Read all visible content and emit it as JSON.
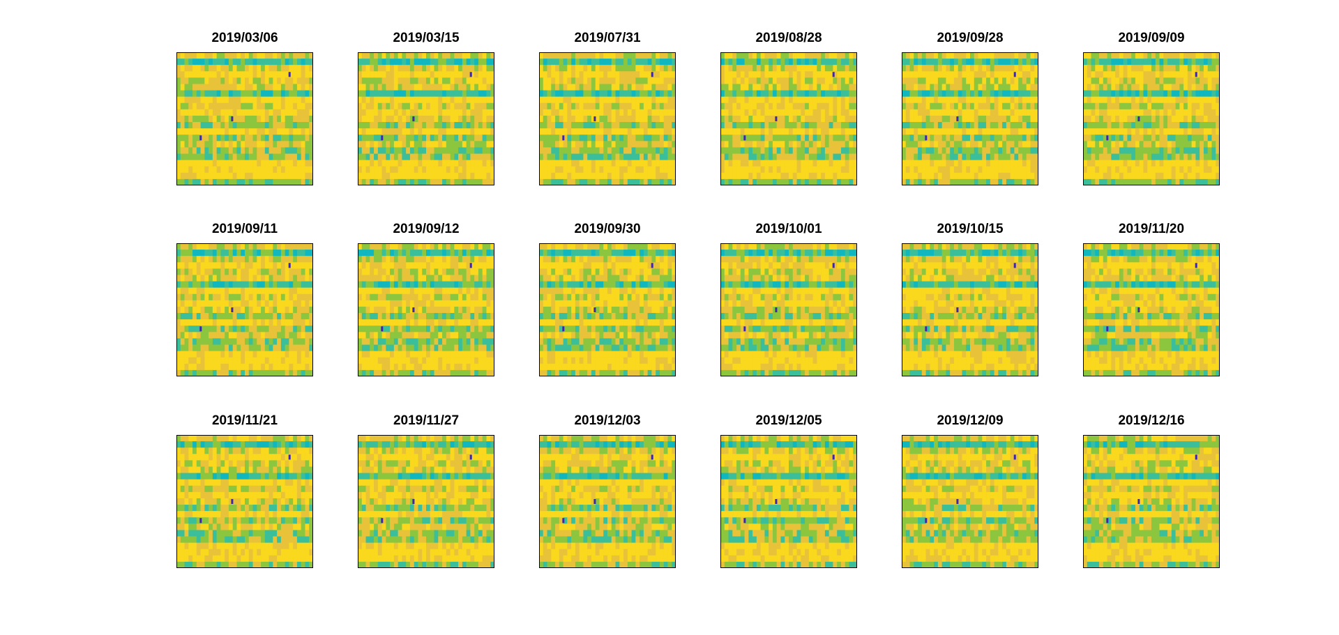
{
  "figure": {
    "type": "heatmap-grid",
    "rows": 3,
    "columns": 6,
    "colormap": "parula",
    "colors": {
      "low": "#3e26a8",
      "blue": "#1a9bd8",
      "cyan": "#10b7bf",
      "teal": "#3bbf9a",
      "green": "#8cc63f",
      "yellow": "#e8c33a",
      "high": "#f9d81d",
      "frame": "#000000"
    }
  },
  "chart_data": [
    {
      "type": "heatmap",
      "title": "2019/03/06"
    },
    {
      "type": "heatmap",
      "title": "2019/03/15"
    },
    {
      "type": "heatmap",
      "title": "2019/07/31"
    },
    {
      "type": "heatmap",
      "title": "2019/08/28"
    },
    {
      "type": "heatmap",
      "title": "2019/09/28"
    },
    {
      "type": "heatmap",
      "title": "2019/09/09"
    },
    {
      "type": "heatmap",
      "title": "2019/09/11"
    },
    {
      "type": "heatmap",
      "title": "2019/09/12"
    },
    {
      "type": "heatmap",
      "title": "2019/09/30"
    },
    {
      "type": "heatmap",
      "title": "2019/10/01"
    },
    {
      "type": "heatmap",
      "title": "2019/10/15"
    },
    {
      "type": "heatmap",
      "title": "2019/11/20"
    },
    {
      "type": "heatmap",
      "title": "2019/11/21"
    },
    {
      "type": "heatmap",
      "title": "2019/11/27"
    },
    {
      "type": "heatmap",
      "title": "2019/12/03"
    },
    {
      "type": "heatmap",
      "title": "2019/12/05"
    },
    {
      "type": "heatmap",
      "title": "2019/12/09"
    },
    {
      "type": "heatmap",
      "title": "2019/12/16"
    }
  ]
}
